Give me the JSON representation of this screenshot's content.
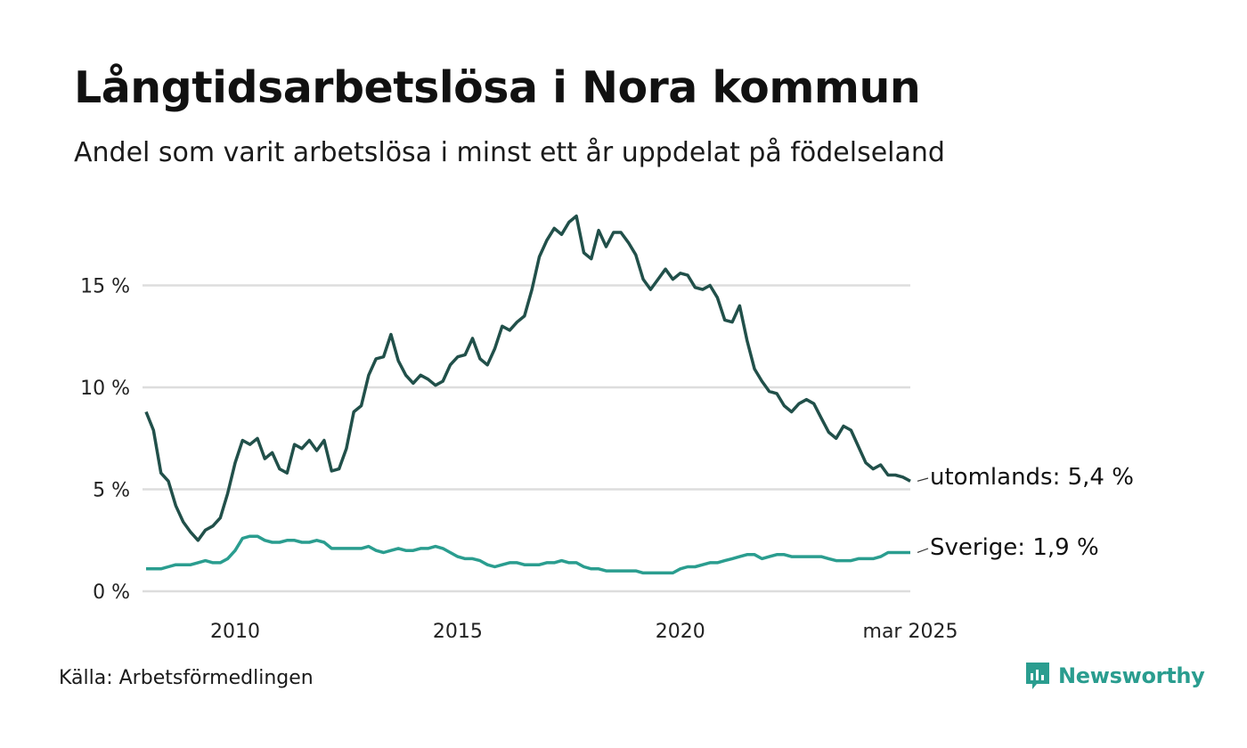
{
  "title": "Långtidsarbetslösa i Nora kommun",
  "subtitle": "Andel som varit arbetslösa i minst ett år uppdelat på födelseland",
  "source": "Källa: Arbetsförmedlingen",
  "brand": "Newsworthy",
  "brand_icon": "newsworthy-logo-icon",
  "colors": {
    "utomlands": "#21504a",
    "sverige": "#2a9d8f",
    "grid": "#dddddd",
    "brand": "#2a9d8f"
  },
  "chart_data": {
    "type": "line",
    "title": "Långtidsarbetslösa i Nora kommun",
    "subtitle": "Andel som varit arbetslösa i minst ett år uppdelat på födelseland",
    "x_range": [
      "2008-01",
      "2025-03"
    ],
    "x_ticks": [
      "2010",
      "2015",
      "2020",
      "mar 2025"
    ],
    "y_ticks": [
      "0 %",
      "5 %",
      "10 %",
      "15 %"
    ],
    "ylim": [
      0,
      19
    ],
    "grid": "horizontal",
    "series": [
      {
        "name": "utomlands",
        "end_label": "utomlands: 5,4 %",
        "points": [
          [
            "2008-01",
            8.8
          ],
          [
            "2008-03",
            7.9
          ],
          [
            "2008-05",
            5.8
          ],
          [
            "2008-07",
            5.4
          ],
          [
            "2008-09",
            4.2
          ],
          [
            "2008-11",
            3.4
          ],
          [
            "2009-01",
            2.9
          ],
          [
            "2009-03",
            2.5
          ],
          [
            "2009-05",
            3.0
          ],
          [
            "2009-07",
            3.2
          ],
          [
            "2009-09",
            3.6
          ],
          [
            "2009-11",
            4.8
          ],
          [
            "2010-01",
            6.3
          ],
          [
            "2010-03",
            7.4
          ],
          [
            "2010-05",
            7.2
          ],
          [
            "2010-07",
            7.5
          ],
          [
            "2010-09",
            6.5
          ],
          [
            "2010-11",
            6.8
          ],
          [
            "2011-01",
            6.0
          ],
          [
            "2011-03",
            5.8
          ],
          [
            "2011-05",
            7.2
          ],
          [
            "2011-07",
            7.0
          ],
          [
            "2011-09",
            7.4
          ],
          [
            "2011-11",
            6.9
          ],
          [
            "2012-01",
            7.4
          ],
          [
            "2012-03",
            5.9
          ],
          [
            "2012-05",
            6.0
          ],
          [
            "2012-07",
            7.0
          ],
          [
            "2012-09",
            8.8
          ],
          [
            "2012-11",
            9.1
          ],
          [
            "2013-01",
            10.6
          ],
          [
            "2013-03",
            11.4
          ],
          [
            "2013-05",
            11.5
          ],
          [
            "2013-07",
            12.6
          ],
          [
            "2013-09",
            11.3
          ],
          [
            "2013-11",
            10.6
          ],
          [
            "2014-01",
            10.2
          ],
          [
            "2014-03",
            10.6
          ],
          [
            "2014-05",
            10.4
          ],
          [
            "2014-07",
            10.1
          ],
          [
            "2014-09",
            10.3
          ],
          [
            "2014-11",
            11.1
          ],
          [
            "2015-01",
            11.5
          ],
          [
            "2015-03",
            11.6
          ],
          [
            "2015-05",
            12.4
          ],
          [
            "2015-07",
            11.4
          ],
          [
            "2015-09",
            11.1
          ],
          [
            "2015-11",
            11.9
          ],
          [
            "2016-01",
            13.0
          ],
          [
            "2016-03",
            12.8
          ],
          [
            "2016-05",
            13.2
          ],
          [
            "2016-07",
            13.5
          ],
          [
            "2016-09",
            14.8
          ],
          [
            "2016-11",
            16.4
          ],
          [
            "2017-01",
            17.2
          ],
          [
            "2017-03",
            17.8
          ],
          [
            "2017-05",
            17.5
          ],
          [
            "2017-07",
            18.1
          ],
          [
            "2017-09",
            18.4
          ],
          [
            "2017-11",
            16.6
          ],
          [
            "2018-01",
            16.3
          ],
          [
            "2018-03",
            17.7
          ],
          [
            "2018-05",
            16.9
          ],
          [
            "2018-07",
            17.6
          ],
          [
            "2018-09",
            17.6
          ],
          [
            "2018-11",
            17.1
          ],
          [
            "2019-01",
            16.5
          ],
          [
            "2019-03",
            15.3
          ],
          [
            "2019-05",
            14.8
          ],
          [
            "2019-07",
            15.3
          ],
          [
            "2019-09",
            15.8
          ],
          [
            "2019-11",
            15.3
          ],
          [
            "2020-01",
            15.6
          ],
          [
            "2020-03",
            15.5
          ],
          [
            "2020-05",
            14.9
          ],
          [
            "2020-07",
            14.8
          ],
          [
            "2020-09",
            15.0
          ],
          [
            "2020-11",
            14.4
          ],
          [
            "2021-01",
            13.3
          ],
          [
            "2021-03",
            13.2
          ],
          [
            "2021-05",
            14.0
          ],
          [
            "2021-07",
            12.3
          ],
          [
            "2021-09",
            10.9
          ],
          [
            "2021-11",
            10.3
          ],
          [
            "2022-01",
            9.8
          ],
          [
            "2022-03",
            9.7
          ],
          [
            "2022-05",
            9.1
          ],
          [
            "2022-07",
            8.8
          ],
          [
            "2022-09",
            9.2
          ],
          [
            "2022-11",
            9.4
          ],
          [
            "2023-01",
            9.2
          ],
          [
            "2023-03",
            8.5
          ],
          [
            "2023-05",
            7.8
          ],
          [
            "2023-07",
            7.5
          ],
          [
            "2023-09",
            8.1
          ],
          [
            "2023-11",
            7.9
          ],
          [
            "2024-01",
            7.1
          ],
          [
            "2024-03",
            6.3
          ],
          [
            "2024-05",
            6.0
          ],
          [
            "2024-07",
            6.2
          ],
          [
            "2024-09",
            5.7
          ],
          [
            "2024-11",
            5.7
          ],
          [
            "2025-01",
            5.6
          ],
          [
            "2025-03",
            5.4
          ]
        ]
      },
      {
        "name": "Sverige",
        "end_label": "Sverige: 1,9 %",
        "points": [
          [
            "2008-01",
            1.1
          ],
          [
            "2008-03",
            1.1
          ],
          [
            "2008-05",
            1.1
          ],
          [
            "2008-07",
            1.2
          ],
          [
            "2008-09",
            1.3
          ],
          [
            "2008-11",
            1.3
          ],
          [
            "2009-01",
            1.3
          ],
          [
            "2009-03",
            1.4
          ],
          [
            "2009-05",
            1.5
          ],
          [
            "2009-07",
            1.4
          ],
          [
            "2009-09",
            1.4
          ],
          [
            "2009-11",
            1.6
          ],
          [
            "2010-01",
            2.0
          ],
          [
            "2010-03",
            2.6
          ],
          [
            "2010-05",
            2.7
          ],
          [
            "2010-07",
            2.7
          ],
          [
            "2010-09",
            2.5
          ],
          [
            "2010-11",
            2.4
          ],
          [
            "2011-01",
            2.4
          ],
          [
            "2011-03",
            2.5
          ],
          [
            "2011-05",
            2.5
          ],
          [
            "2011-07",
            2.4
          ],
          [
            "2011-09",
            2.4
          ],
          [
            "2011-11",
            2.5
          ],
          [
            "2012-01",
            2.4
          ],
          [
            "2012-03",
            2.1
          ],
          [
            "2012-05",
            2.1
          ],
          [
            "2012-07",
            2.1
          ],
          [
            "2012-09",
            2.1
          ],
          [
            "2012-11",
            2.1
          ],
          [
            "2013-01",
            2.2
          ],
          [
            "2013-03",
            2.0
          ],
          [
            "2013-05",
            1.9
          ],
          [
            "2013-07",
            2.0
          ],
          [
            "2013-09",
            2.1
          ],
          [
            "2013-11",
            2.0
          ],
          [
            "2014-01",
            2.0
          ],
          [
            "2014-03",
            2.1
          ],
          [
            "2014-05",
            2.1
          ],
          [
            "2014-07",
            2.2
          ],
          [
            "2014-09",
            2.1
          ],
          [
            "2014-11",
            1.9
          ],
          [
            "2015-01",
            1.7
          ],
          [
            "2015-03",
            1.6
          ],
          [
            "2015-05",
            1.6
          ],
          [
            "2015-07",
            1.5
          ],
          [
            "2015-09",
            1.3
          ],
          [
            "2015-11",
            1.2
          ],
          [
            "2016-01",
            1.3
          ],
          [
            "2016-03",
            1.4
          ],
          [
            "2016-05",
            1.4
          ],
          [
            "2016-07",
            1.3
          ],
          [
            "2016-09",
            1.3
          ],
          [
            "2016-11",
            1.3
          ],
          [
            "2017-01",
            1.4
          ],
          [
            "2017-03",
            1.4
          ],
          [
            "2017-05",
            1.5
          ],
          [
            "2017-07",
            1.4
          ],
          [
            "2017-09",
            1.4
          ],
          [
            "2017-11",
            1.2
          ],
          [
            "2018-01",
            1.1
          ],
          [
            "2018-03",
            1.1
          ],
          [
            "2018-05",
            1.0
          ],
          [
            "2018-07",
            1.0
          ],
          [
            "2018-09",
            1.0
          ],
          [
            "2018-11",
            1.0
          ],
          [
            "2019-01",
            1.0
          ],
          [
            "2019-03",
            0.9
          ],
          [
            "2019-05",
            0.9
          ],
          [
            "2019-07",
            0.9
          ],
          [
            "2019-09",
            0.9
          ],
          [
            "2019-11",
            0.9
          ],
          [
            "2020-01",
            1.1
          ],
          [
            "2020-03",
            1.2
          ],
          [
            "2020-05",
            1.2
          ],
          [
            "2020-07",
            1.3
          ],
          [
            "2020-09",
            1.4
          ],
          [
            "2020-11",
            1.4
          ],
          [
            "2021-01",
            1.5
          ],
          [
            "2021-03",
            1.6
          ],
          [
            "2021-05",
            1.7
          ],
          [
            "2021-07",
            1.8
          ],
          [
            "2021-09",
            1.8
          ],
          [
            "2021-11",
            1.6
          ],
          [
            "2022-01",
            1.7
          ],
          [
            "2022-03",
            1.8
          ],
          [
            "2022-05",
            1.8
          ],
          [
            "2022-07",
            1.7
          ],
          [
            "2022-09",
            1.7
          ],
          [
            "2022-11",
            1.7
          ],
          [
            "2023-01",
            1.7
          ],
          [
            "2023-03",
            1.7
          ],
          [
            "2023-05",
            1.6
          ],
          [
            "2023-07",
            1.5
          ],
          [
            "2023-09",
            1.5
          ],
          [
            "2023-11",
            1.5
          ],
          [
            "2024-01",
            1.6
          ],
          [
            "2024-03",
            1.6
          ],
          [
            "2024-05",
            1.6
          ],
          [
            "2024-07",
            1.7
          ],
          [
            "2024-09",
            1.9
          ],
          [
            "2024-11",
            1.9
          ],
          [
            "2025-01",
            1.9
          ],
          [
            "2025-03",
            1.9
          ]
        ]
      }
    ]
  }
}
